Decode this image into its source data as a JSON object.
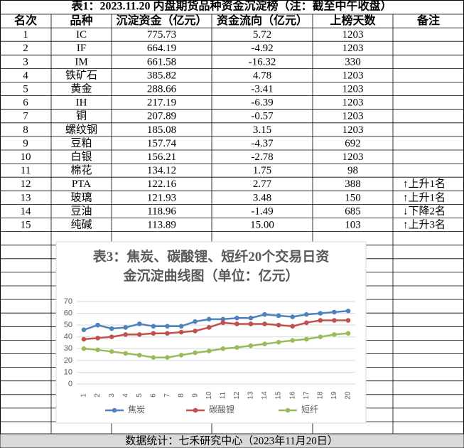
{
  "header": {
    "title": "表1：2023.11.20 内盘期货品种资金沉淀榜（注：截至中午收盘）"
  },
  "table": {
    "columns": [
      "名次",
      "品种",
      "沉淀资金（亿元）",
      "资金流向（亿元）",
      "上榜天数",
      "备注"
    ],
    "rows": [
      [
        "1",
        "IC",
        "775.73",
        "5.72",
        "1203",
        ""
      ],
      [
        "2",
        "IF",
        "664.19",
        "-4.92",
        "1203",
        ""
      ],
      [
        "3",
        "IM",
        "661.58",
        "-16.32",
        "330",
        ""
      ],
      [
        "4",
        "铁矿石",
        "385.82",
        "4.78",
        "1203",
        ""
      ],
      [
        "5",
        "黄金",
        "288.66",
        "-3.41",
        "1203",
        ""
      ],
      [
        "6",
        "IH",
        "217.19",
        "-6.39",
        "1203",
        ""
      ],
      [
        "7",
        "铜",
        "207.89",
        "-0.57",
        "1203",
        ""
      ],
      [
        "8",
        "螺纹钢",
        "185.08",
        "3.15",
        "1203",
        ""
      ],
      [
        "9",
        "豆粕",
        "157.74",
        "-4.37",
        "692",
        ""
      ],
      [
        "10",
        "白银",
        "156.21",
        "-2.78",
        "1203",
        ""
      ],
      [
        "11",
        "棉花",
        "134.12",
        "1.75",
        "98",
        ""
      ],
      [
        "12",
        "PTA",
        "122.16",
        "2.77",
        "388",
        "↑上升1名"
      ],
      [
        "13",
        "玻璃",
        "121.93",
        "3.48",
        "150",
        "↑上升1名"
      ],
      [
        "14",
        "豆油",
        "118.96",
        "-1.49",
        "685",
        "↓下降2名"
      ],
      [
        "15",
        "纯碱",
        "113.89",
        "15.00",
        "103",
        "↑上升3名"
      ]
    ]
  },
  "chart_data": {
    "type": "line",
    "title": "表3：焦炭、碳酸锂、短纤20个交易日资金沉淀曲线图（单位：亿元）",
    "categories": [
      "1",
      "2",
      "3",
      "4",
      "5",
      "6",
      "7",
      "8",
      "9",
      "10",
      "11",
      "12",
      "13",
      "14",
      "15",
      "16",
      "17",
      "18",
      "19",
      "20"
    ],
    "series": [
      {
        "name": "焦炭",
        "color": "#4f81bd",
        "values": [
          46,
          50,
          47,
          48,
          51,
          49,
          49,
          49,
          53,
          55,
          55,
          56,
          56,
          59,
          58,
          57,
          59,
          60,
          61,
          62
        ]
      },
      {
        "name": "碳酸锂",
        "color": "#c0504d",
        "values": [
          38,
          39,
          40,
          42,
          42,
          43,
          43,
          44,
          45,
          48,
          52,
          51,
          51,
          51,
          50,
          49,
          52,
          54,
          54,
          54
        ]
      },
      {
        "name": "短纤",
        "color": "#9bbb59",
        "values": [
          30,
          29,
          27.5,
          26,
          24.5,
          22.5,
          22.5,
          24.5,
          26.5,
          28,
          30,
          31,
          32.5,
          34,
          35.5,
          37,
          38,
          40,
          42,
          43
        ]
      }
    ],
    "ylim": [
      0,
      70
    ],
    "yticks": [
      0,
      10,
      20,
      30,
      40,
      50,
      60,
      70
    ],
    "grid": true,
    "legend": "bottom"
  },
  "footer": {
    "text": "数据统计：七禾研究中心（2023年11月20日）"
  }
}
